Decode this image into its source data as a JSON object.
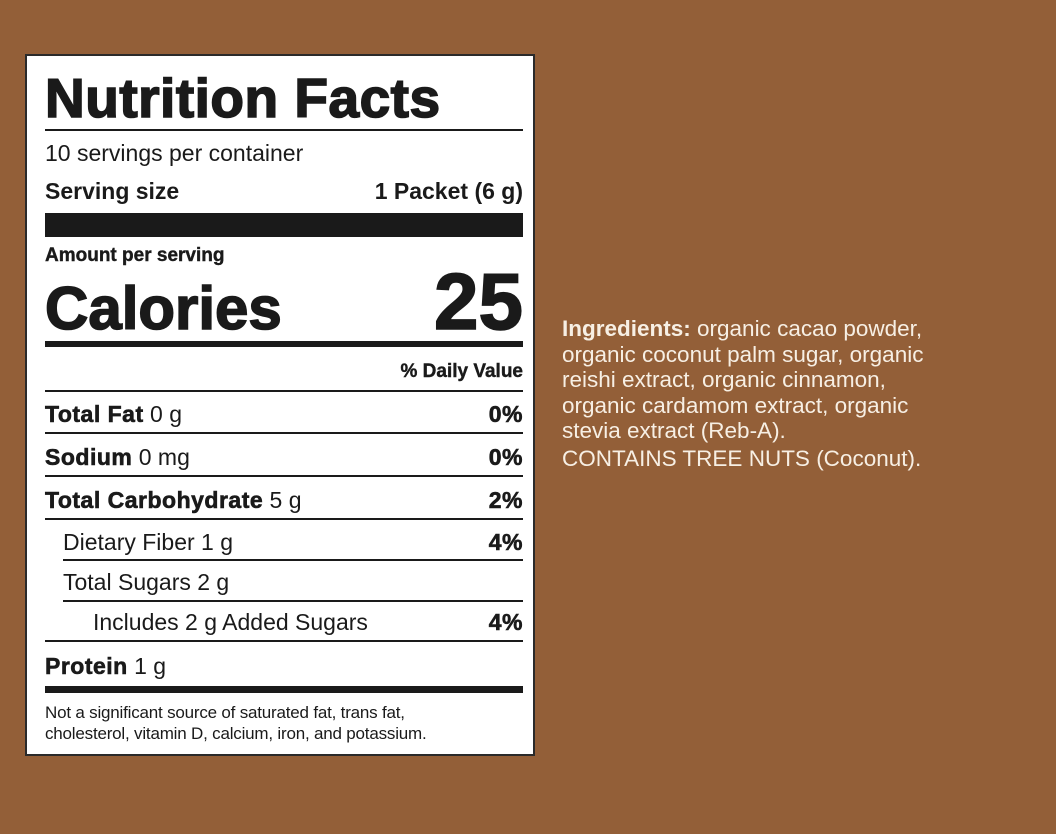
{
  "label": {
    "title": "Nutrition Facts",
    "servings_per_container": "10 servings per container",
    "serving_size_label": "Serving size",
    "serving_size_value": "1 Packet (6 g)",
    "amount_per_serving": "Amount per serving",
    "calories_label": "Calories",
    "calories_value": "25",
    "daily_value_header": "% Daily Value",
    "nutrients": [
      {
        "name": "Total Fat",
        "amount": "0 g",
        "dv": "0%"
      },
      {
        "name": "Sodium",
        "amount": "0 mg",
        "dv": "0%"
      },
      {
        "name": "Total Carbohydrate",
        "amount": "5 g",
        "dv": "2%"
      },
      {
        "name": "Dietary Fiber 1 g",
        "dv": "4%"
      },
      {
        "name": "Total Sugars 2 g",
        "dv": ""
      },
      {
        "name": "Includes 2 g Added Sugars",
        "dv": "4%"
      },
      {
        "name": "Protein",
        "amount": "1 g"
      }
    ],
    "footnote_line1": "Not a significant source of saturated fat, trans fat,",
    "footnote_line2": "cholesterol, vitamin D, calcium, iron, and potassium."
  },
  "ingredients": {
    "label": "Ingredients:",
    "lines": [
      " organic cacao powder,",
      "organic coconut palm sugar, organic",
      "reishi extract, organic cinnamon,",
      "organic cardamom extract, organic",
      "stevia extract (Reb-A)."
    ],
    "allergen": "CONTAINS TREE NUTS (Coconut)."
  },
  "colors": {
    "background": "#935f38",
    "label_bg": "#ffffff",
    "text_light": "#f7efe4",
    "ink": "#1a1a1a"
  }
}
